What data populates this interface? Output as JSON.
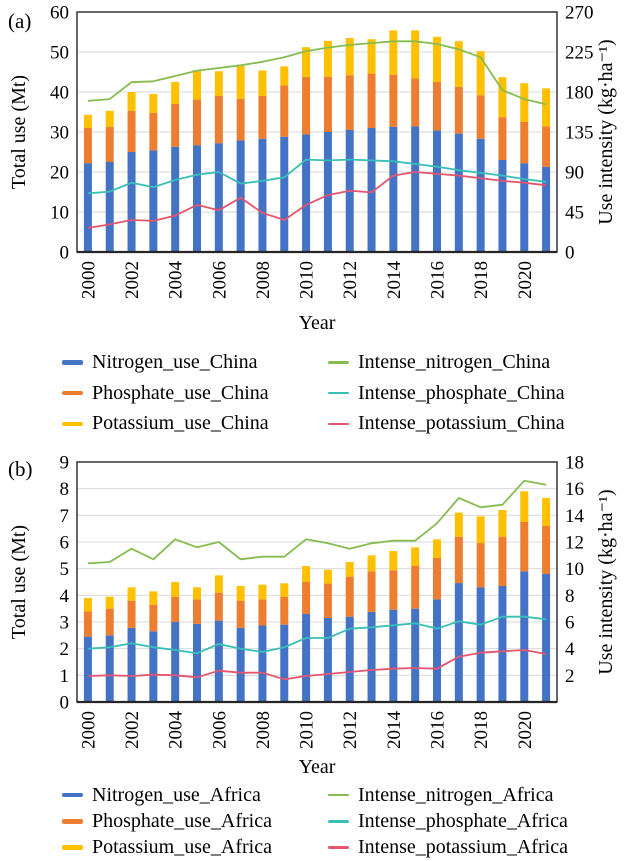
{
  "figure_background": "#ffffff",
  "chart_data": [
    {
      "type": "bar+line",
      "panel_label": "(a)",
      "xlabel": "Year",
      "x": [
        2000,
        2001,
        2002,
        2003,
        2004,
        2005,
        2006,
        2007,
        2008,
        2009,
        2010,
        2011,
        2012,
        2013,
        2014,
        2015,
        2016,
        2017,
        2018,
        2019,
        2020,
        2021
      ],
      "x_tick_labels": [
        "2000",
        "2002",
        "2004",
        "2006",
        "2008",
        "2010",
        "2012",
        "2014",
        "2016",
        "2018",
        "2020"
      ],
      "left_axis": {
        "label": "Total use (Mt)",
        "min": 0,
        "max": 60,
        "ticks": [
          0,
          10,
          20,
          30,
          40,
          50,
          60
        ]
      },
      "right_axis": {
        "label": "Use intensity (kg·ha⁻¹)",
        "min": 0,
        "max": 270,
        "ticks": [
          0,
          45,
          90,
          135,
          180,
          225,
          270
        ]
      },
      "grid_color": "#D9D9D9",
      "frame_color": "#262626",
      "bar_stacked": true,
      "bar_series": [
        {
          "name": "Nitrogen_use_China",
          "color": "#4472C4",
          "axis": "left",
          "values": [
            22.2,
            22.5,
            25.0,
            25.4,
            26.3,
            26.7,
            27.2,
            27.9,
            28.3,
            28.8,
            29.4,
            30.0,
            30.5,
            31.0,
            31.3,
            31.4,
            30.4,
            29.6,
            28.3,
            23.0,
            22.2,
            21.3
          ]
        },
        {
          "name": "Phosphate_use_China",
          "color": "#ED7D31",
          "axis": "left",
          "values": [
            8.8,
            8.8,
            10.3,
            9.4,
            10.7,
            11.4,
            11.8,
            10.4,
            10.7,
            12.9,
            14.4,
            13.8,
            13.7,
            13.6,
            13.0,
            12.0,
            12.1,
            11.7,
            10.9,
            10.7,
            10.3,
            10.1
          ]
        },
        {
          "name": "Potassium_use_China",
          "color": "#FFC000",
          "axis": "left",
          "values": [
            3.3,
            4.0,
            4.7,
            4.7,
            5.5,
            7.4,
            6.2,
            8.2,
            6.4,
            4.7,
            7.4,
            9.0,
            9.3,
            8.6,
            11.1,
            12.0,
            11.3,
            11.4,
            11.0,
            10.0,
            9.7,
            9.5
          ]
        }
      ],
      "line_series": [
        {
          "name": "Intense_nitrogen_China",
          "color": "#86BC4F",
          "axis": "right",
          "values": [
            170,
            172,
            191,
            192,
            198,
            204,
            207,
            210,
            214,
            219,
            226,
            230,
            233,
            235,
            237,
            237,
            234,
            228,
            219,
            182,
            172,
            166
          ]
        },
        {
          "name": "Intense_phosphate_China",
          "color": "#38BFB7",
          "axis": "right",
          "values": [
            66,
            68,
            78,
            73,
            81,
            87,
            90,
            77,
            80,
            84,
            104,
            103,
            104,
            103,
            102,
            99,
            96,
            92,
            89,
            86,
            82,
            79
          ]
        },
        {
          "name": "Intense_potassium_China",
          "color": "#E4566D",
          "axis": "right",
          "values": [
            27,
            31,
            36,
            35,
            41,
            53,
            47,
            61,
            44,
            36,
            53,
            64,
            69,
            67,
            86,
            90,
            88,
            86,
            83,
            80,
            78,
            75
          ]
        }
      ]
    },
    {
      "type": "bar+line",
      "panel_label": "(b)",
      "xlabel": "Year",
      "x": [
        2000,
        2001,
        2002,
        2003,
        2004,
        2005,
        2006,
        2007,
        2008,
        2009,
        2010,
        2011,
        2012,
        2013,
        2014,
        2015,
        2016,
        2017,
        2018,
        2019,
        2020,
        2021
      ],
      "x_tick_labels": [
        "2000",
        "2002",
        "2004",
        "2006",
        "2008",
        "2010",
        "2012",
        "2014",
        "2016",
        "2018",
        "2020"
      ],
      "left_axis": {
        "label": "Total use (Mt)",
        "min": 0,
        "max": 9,
        "ticks": [
          0,
          1,
          2,
          3,
          4,
          5,
          6,
          7,
          8,
          9
        ]
      },
      "right_axis": {
        "label": "Use intensity (kg·ha⁻¹)",
        "min": 0,
        "max": 18,
        "ticks": [
          2,
          4,
          6,
          8,
          10,
          12,
          14,
          16,
          18
        ]
      },
      "grid_color": "#D9D9D9",
      "frame_color": "#262626",
      "bar_stacked": true,
      "bar_series": [
        {
          "name": "Nitrogen_use_Africa",
          "color": "#4472C4",
          "axis": "left",
          "values": [
            2.45,
            2.5,
            2.78,
            2.65,
            3.0,
            2.93,
            3.05,
            2.78,
            2.87,
            2.9,
            3.3,
            3.15,
            3.2,
            3.38,
            3.46,
            3.5,
            3.85,
            4.46,
            4.3,
            4.35,
            4.9,
            4.8
          ]
        },
        {
          "name": "Phosphate_use_Africa",
          "color": "#ED7D31",
          "axis": "left",
          "values": [
            0.95,
            1.0,
            1.02,
            1.0,
            0.95,
            0.92,
            1.05,
            1.02,
            0.98,
            1.05,
            1.2,
            1.29,
            1.5,
            1.52,
            1.48,
            1.6,
            1.55,
            1.74,
            1.66,
            1.85,
            1.85,
            1.8
          ]
        },
        {
          "name": "Potassium_use_Africa",
          "color": "#FFC000",
          "axis": "left",
          "values": [
            0.5,
            0.45,
            0.5,
            0.5,
            0.55,
            0.45,
            0.65,
            0.55,
            0.55,
            0.5,
            0.6,
            0.52,
            0.55,
            0.6,
            0.72,
            0.7,
            0.7,
            0.9,
            1.0,
            1.0,
            1.15,
            1.05
          ]
        }
      ],
      "line_series": [
        {
          "name": "Intense_nitrogen_Africa",
          "color": "#86BC4F",
          "axis": "right",
          "values": [
            10.4,
            10.5,
            11.5,
            10.7,
            12.2,
            11.6,
            12.0,
            10.7,
            10.9,
            10.9,
            12.2,
            11.9,
            11.5,
            11.9,
            12.1,
            12.1,
            13.4,
            15.3,
            14.6,
            14.8,
            16.6,
            16.3
          ]
        },
        {
          "name": "Intense_phosphate_Africa",
          "color": "#38BFB7",
          "axis": "right",
          "values": [
            4.0,
            4.1,
            4.4,
            4.1,
            3.9,
            3.65,
            4.35,
            4.0,
            3.75,
            4.1,
            4.8,
            4.8,
            5.5,
            5.6,
            5.75,
            5.9,
            5.5,
            6.05,
            5.8,
            6.4,
            6.4,
            6.2
          ]
        },
        {
          "name": "Intense_potassium_Africa",
          "color": "#E4566D",
          "axis": "right",
          "values": [
            1.95,
            2.0,
            1.95,
            2.05,
            2.0,
            1.85,
            2.35,
            2.2,
            2.2,
            1.7,
            1.95,
            2.1,
            2.25,
            2.4,
            2.5,
            2.55,
            2.5,
            3.4,
            3.7,
            3.8,
            3.9,
            3.6
          ]
        }
      ]
    }
  ]
}
